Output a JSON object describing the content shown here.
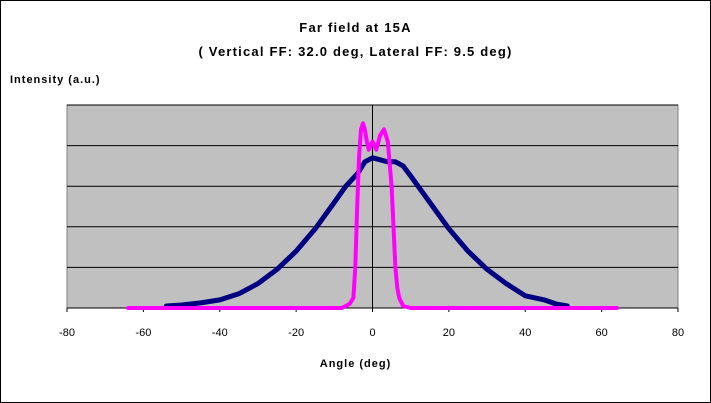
{
  "chart_data": {
    "type": "line",
    "title": "Far field at 15A",
    "subtitle": "( Vertical FF: 32.0 deg, Lateral FF: 9.5 deg)",
    "xlabel": "Angle (deg)",
    "ylabel": "Intensity (a.u.)",
    "xlim": [
      -80,
      80
    ],
    "ylim": [
      0,
      1.0
    ],
    "x_ticks": [
      "-80",
      "-60",
      "-40",
      "-20",
      "0",
      "20",
      "40",
      "60",
      "80"
    ],
    "grid": true,
    "legend": "none",
    "plot_background": "#c0c0c0",
    "series": [
      {
        "color": "#000080",
        "x": [
          -54,
          -50,
          -45,
          -40,
          -35,
          -30,
          -25,
          -20,
          -15,
          -10,
          -7,
          -4,
          -2,
          0,
          2,
          4,
          6,
          8,
          10,
          15,
          20,
          25,
          30,
          35,
          40,
          45,
          48,
          51
        ],
        "y": [
          0.01,
          0.015,
          0.025,
          0.04,
          0.07,
          0.12,
          0.19,
          0.28,
          0.39,
          0.52,
          0.6,
          0.66,
          0.72,
          0.74,
          0.73,
          0.72,
          0.72,
          0.7,
          0.65,
          0.52,
          0.39,
          0.28,
          0.19,
          0.12,
          0.06,
          0.04,
          0.02,
          0.01
        ]
      },
      {
        "color": "#ff00ff",
        "x": [
          -64,
          -8,
          -6,
          -5,
          -4.5,
          -4,
          -3.5,
          -3,
          -2.5,
          -2,
          -1.5,
          -1,
          0,
          1,
          2,
          3,
          4,
          5,
          5.5,
          6,
          6.5,
          7,
          8,
          10,
          64
        ],
        "y": [
          0,
          0,
          0.02,
          0.05,
          0.2,
          0.5,
          0.75,
          0.88,
          0.91,
          0.88,
          0.82,
          0.78,
          0.82,
          0.78,
          0.85,
          0.88,
          0.82,
          0.6,
          0.4,
          0.2,
          0.1,
          0.05,
          0.01,
          0,
          0
        ]
      }
    ]
  }
}
